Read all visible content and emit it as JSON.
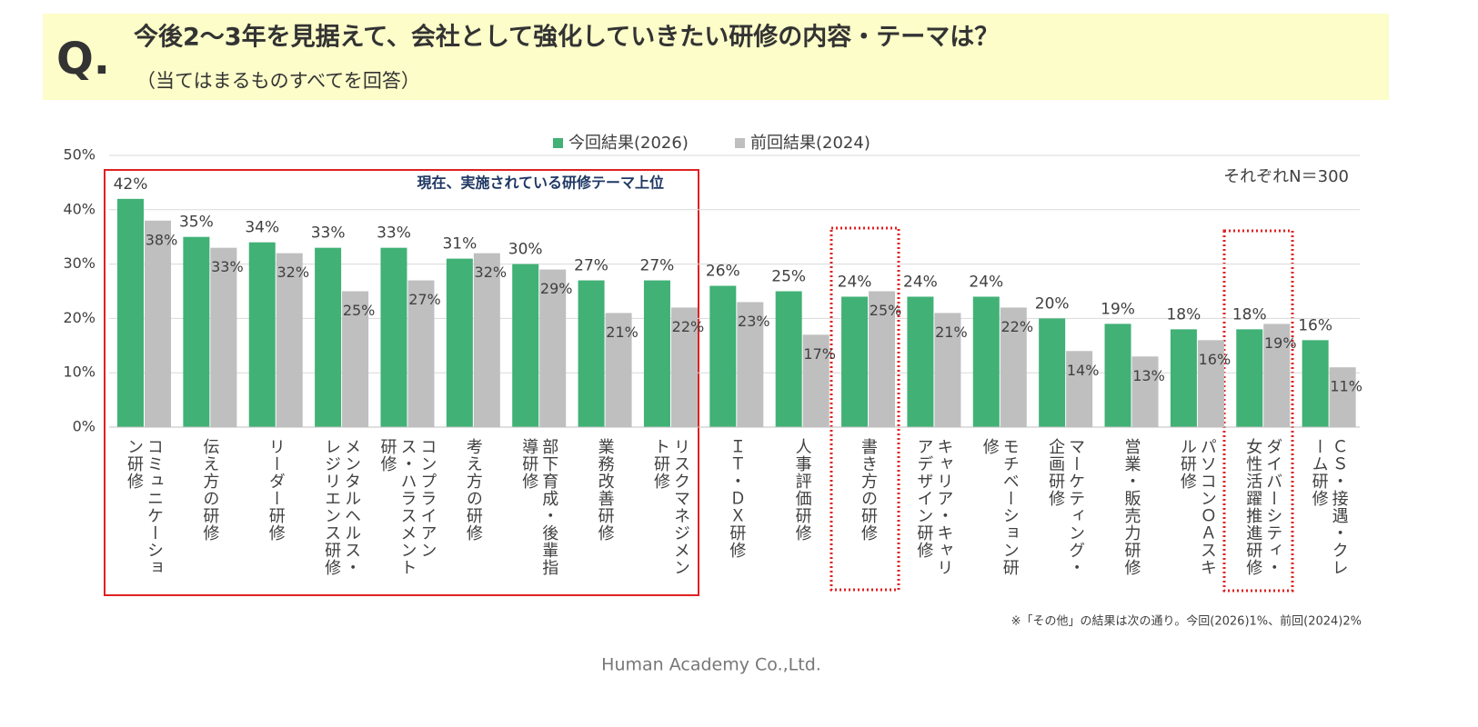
{
  "header": {
    "q": "Q.",
    "title": "今後2～3年を見据えて、会社として強化していきたい研修の内容・テーマは？",
    "subtitle": "（当てはまるものすべてを回答）"
  },
  "chart_data": {
    "type": "bar",
    "legend": "top",
    "grid": true,
    "categories": [
      "コミュニケーション研修",
      "伝え方の研修",
      "リーダー研修",
      "メンタルヘルス・レジリエンス研修",
      "コンプライアンス・ハラスメント研修",
      "考え方の研修",
      "部下育成・後輩指導研修",
      "業務改善研修",
      "リスクマネジメント研修",
      "ＩＴ・ＤＸ研修",
      "人事評価研修",
      "書き方の研修",
      "キャリア・キャリアデザイン研修",
      "モチベーション研修",
      "マーケティング・企画研修",
      "営業・販売力研修",
      "パソコンＯＡスキル研修",
      "ダイバーシティ・女性活躍推進研修",
      "ＣＳ・接遇・クレーム研修"
    ],
    "series": [
      {
        "name": "今回結果(2026)",
        "color": "#41b176",
        "values": [
          42,
          35,
          34,
          33,
          33,
          31,
          30,
          27,
          27,
          26,
          25,
          24,
          24,
          24,
          20,
          19,
          18,
          18,
          16
        ],
        "value_labels": [
          "42%",
          "35%",
          "34%",
          "33%",
          "33%",
          "31%",
          "30%",
          "27%",
          "27%",
          "26%",
          "25%",
          "24%",
          "24%",
          "24%",
          "20%",
          "19%",
          "18%",
          "18%",
          "16%"
        ]
      },
      {
        "name": "前回結果(2024)",
        "color": "#bfbfbf",
        "values": [
          38,
          33,
          32,
          25,
          27,
          32,
          29,
          21,
          22,
          23,
          17,
          25,
          21,
          22,
          14,
          13,
          16,
          19,
          11
        ],
        "value_labels": [
          "38%",
          "33%",
          "32%",
          "25%",
          "27%",
          "32%",
          "29%",
          "21%",
          "22%",
          "23%",
          "17%",
          "25%",
          "21%",
          "22%",
          "14%",
          "13%",
          "16%",
          "19%",
          "11%"
        ]
      }
    ],
    "ylim": [
      0,
      50
    ],
    "yticks": [
      {
        "value": 0,
        "label": "0%"
      },
      {
        "value": 10,
        "label": "10%"
      },
      {
        "value": 20,
        "label": "20%"
      },
      {
        "value": 30,
        "label": "30%"
      },
      {
        "value": 40,
        "label": "40%"
      },
      {
        "value": 50,
        "label": "50%"
      }
    ],
    "sample_note": "それぞれN＝300",
    "highlight_label": "現在、実施されている研修テーマ上位"
  },
  "footnote": "※「その他」の結果は次の通り。今回(2026)1%、前回(2024)2%",
  "footer": "Human Academy Co.,Ltd."
}
